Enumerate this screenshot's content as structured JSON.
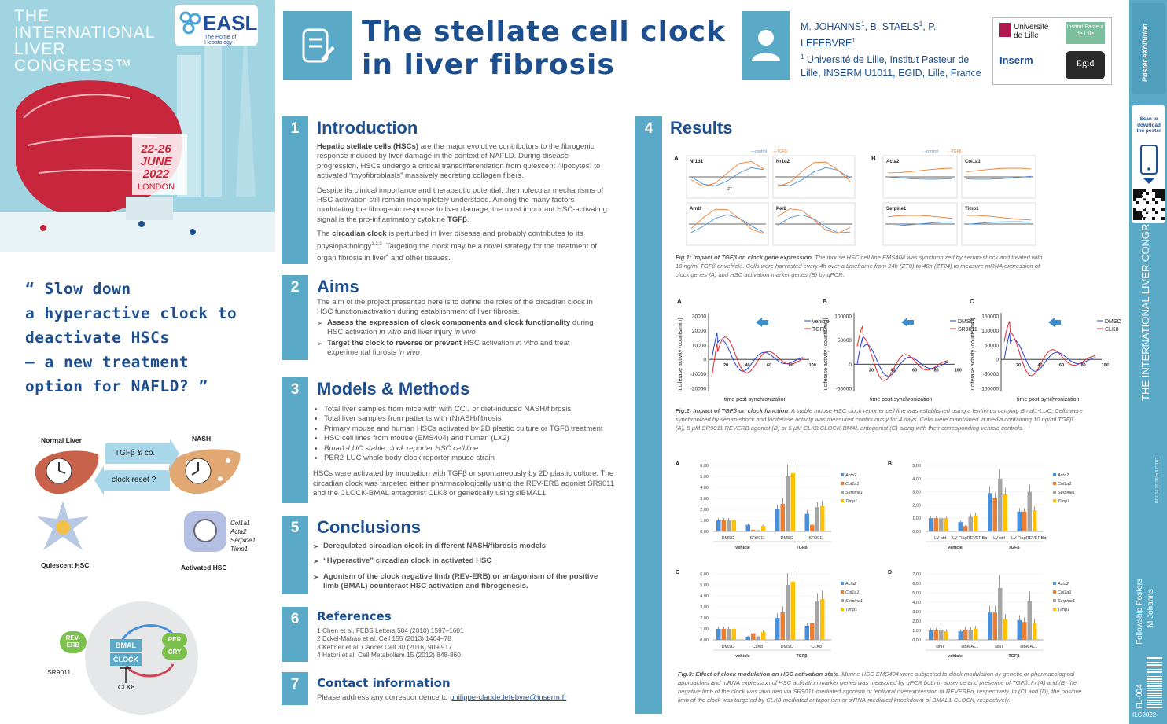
{
  "left": {
    "congress_lines": [
      "THE",
      "INTERNATIONAL",
      "LIVER",
      "CONGRESS™"
    ],
    "easl_logo": "EASL",
    "easl_tagline": "The Home of Hepatology",
    "date_lines": [
      "22-26",
      "JUNE",
      "2022"
    ],
    "location": "LONDON",
    "quote_lines": [
      "“ Slow down",
      "a hyperactive clock to",
      "deactivate HSCs",
      "– a new treatment",
      "option for NAFLD? ”"
    ],
    "diagram": {
      "normal_liver": "Normal Liver",
      "nash": "NASH",
      "tgfb_arrow": "TGFβ & co.",
      "reset_arrow": "clock reset ?",
      "quiescent": "Quiescent HSC",
      "activated": "Activated HSC",
      "markers": [
        "Col1a1",
        "Acta2",
        "Serpine1",
        "Timp1"
      ]
    },
    "clock_diagram": {
      "reverb": "REV-ERB",
      "bmal": "BMAL",
      "clock": "CLOCK",
      "per": "PER",
      "cry": "CRY",
      "sr9011": "SR9011",
      "clk8": "CLK8"
    }
  },
  "header": {
    "title_line1": "The stellate cell clock",
    "title_line2": "in liver fibrosis",
    "authors_link": "M. JOHANNS",
    "authors_rest": ", B. STAELS",
    "authors_rest2": ", P. LEFEBVRE",
    "sup": "1",
    "affiliation": " Université de Lille, Institut Pasteur de Lille, INSERM U1011, EGID, Lille, France",
    "logos": [
      "Université de Lille",
      "Institut Pasteur de Lille",
      "Inserm",
      "Egid"
    ]
  },
  "sections": {
    "intro": {
      "num": "1",
      "title": "Introduction",
      "p1_bold": "Hepatic stellate cells (HSCs)",
      "p1": " are the major evolutive contributors  to  the fibrogenic  response  induced by  liver  damage in the context of NAFLD. During disease progression, HSCs undergo a critical transdifferentiation from quiescent “lipocytes” to activated “myofibroblasts” massively secreting collagen fibers.",
      "p2": "Despite  its clinical  importance  and therapeutic  potential,  the  molecular mechanisms  of  HSC activation still  remain  incompletely  understood. Among the many factors modulating the fibrogenic response to liver damage, the most important  HSC-activating  signal is the pro-inflammatory cytokine ",
      "p2_bold": "TGFβ",
      "p3a": "The ",
      "p3_bold": "circadian clock",
      "p3b": " is perturbed in liver disease and probably contributes to its physiopathology",
      "p3_sup": "1,2,3",
      "p3c": ". Targeting the clock may be a novel strategy for the treatment of organ fibrosis in liver",
      "p3_sup2": "4",
      "p3d": " and other tissues."
    },
    "aims": {
      "num": "2",
      "title": "Aims",
      "p1": "The  aim  of  the  project  presented  here  is  to  define  the  roles  of  the circadian clock in HSC function/activation during establishment of liver fibrosis.",
      "b1_bold": "Assess the expression of clock components and clock functionality",
      "b1": " during HSC activation ",
      "b1_it": "in vitro",
      "b1b": " and liver injury ",
      "b1_it2": "in vivo",
      "b2_bold": "Target the clock to reverse or prevent",
      "b2": " HSC activation ",
      "b2_it": "in vitro",
      "b2b": " and treat experimental fibrosis ",
      "b2_it2": "in vivo"
    },
    "methods": {
      "num": "3",
      "title": "Models & Methods",
      "items": [
        "Total liver samples from mice with with CCl₄ or diet-induced NASH/fibrosis",
        "Total liver samples from patients with (N)ASH/fibrosis",
        "Primary mouse and human HSCs activated by 2D plastic culture or TGFβ treatment",
        "HSC cell lines from mouse (EMS404) and human (LX2)",
        "Bmal1-LUC stable clock reporter HSC cell line",
        "PER2-LUC whole body clock reporter mouse strain"
      ],
      "p": "HSCs were activated by incubation with TGFβ or spontaneously by 2D plastic culture. The circadian clock was targeted either pharmacologically using the REV-ERB agonist SR9011 and the CLOCK-BMAL antagonist CLK8 or genetically using siBMAL1."
    },
    "conclusions": {
      "num": "5",
      "title": "Conclusions",
      "items": [
        "Deregulated circadian clock in different NASH/fibrosis models",
        "“Hyperactive” circadian clock in activated HSC",
        "Agonism of the clock negative limb (REV-ERB) or antagonism of the positive limb (BMAL) counteract HSC activation and fibrogenesis."
      ]
    },
    "references": {
      "num": "6",
      "title": "References",
      "items": [
        "1 Chen et al, FEBS Letters 584 (2010) 1597–1601",
        "2 Eckel-Mahan et al, Cell 155 (2013) 1464–78",
        "3 Kettner et al, Cancer Cell 30 (2016) 909-917",
        "4 Hatori et al, Cell Metabolism 15 (2012) 848-860"
      ]
    },
    "contact": {
      "num": "7",
      "title": "Contact information",
      "text": "Please address any correspondence to ",
      "email": "philippe-claude.lefebvre@inserm.fr"
    },
    "results": {
      "num": "4",
      "title": "Results",
      "fig1_caption_bold": "Fig.1: Impact of TGFβ on clock gene expression",
      "fig1_caption": ". The mouse HSC cell line EMS404 was synchronized by serum-shock and treated with 10 ng/ml TGFβ or vehicle. Cells were harvested every 4h over a timeframe from 24h (ZT0) to 48h (ZT24) to measure mRNA expression of clock genes (A) and HSC activation marker genes (B) by qPCR.",
      "fig2_caption_bold": "Fig.2: Impact of TGFβ on clock function",
      "fig2_caption": ". A stable mouse HSC clock reporter cell line was established using a lentivirus carrying Bmal1-LUC. Cells were synchronized by serum-shock and luciferase activity was measured continuously for 4 days. Cells were maintained in media containing 10 ng/ml TGFβ (A), 5 µM SR9011 REVERB agonist (B) or 5 µM CLK8 CLOCK-BMAL antagonist (C) along with their corresponding vehicle controls.",
      "fig3_caption_bold": "Fig.3: Effect of clock modulation on HSC activation state",
      "fig3_caption": ". Murine HSC EMS404 were subjected to clock modulation by genetic or pharmacological approaches and mRNA expression of HSC activation marker genes was measured by qPCR both in absence and presence of TGFβ. In (A) and (B) the negative limb of the clock was favoured via SR9011-mediated agonism or lentiviral overexpression of REVERBα, respectively. In (C) and (D), the positive limb of the clock was targeted by CLK8-mediated antagonism or siRNA-mediated knockdown of BMAL1-CLOCK, respectively."
    }
  },
  "chart_data": [
    {
      "type": "line",
      "id": "fig1A",
      "panels": [
        "Nr1d1",
        "Nr1d2",
        "Arntl",
        "Per2"
      ],
      "legend": [
        "control",
        "TGFβ"
      ],
      "annotation": "ZT"
    },
    {
      "type": "line",
      "id": "fig1B",
      "panels": [
        "Acta2",
        "Col1a1",
        "Serpine1",
        "Timp1"
      ],
      "legend": [
        "control",
        "TGFβ"
      ]
    },
    {
      "type": "line",
      "id": "fig2A",
      "panel_label": "A",
      "series": [
        {
          "name": "vehicle",
          "color": "#2a3fd0"
        },
        {
          "name": "TGFβ",
          "color": "#e0282d"
        }
      ],
      "xlabel": "time post-synchronization",
      "ylabel": "luciferase activity (counts/min)",
      "xticks": [
        "20",
        "40",
        "60",
        "80",
        "100"
      ],
      "yticks": [
        "30000",
        "20000",
        "10000",
        "0",
        "-10000",
        "-20000"
      ]
    },
    {
      "type": "line",
      "id": "fig2B",
      "panel_label": "B",
      "series": [
        {
          "name": "DMSO",
          "color": "#2a3fd0"
        },
        {
          "name": "SR9011",
          "color": "#e0282d"
        }
      ],
      "xlabel": "time post-synchronization",
      "ylabel": "luciferase activity (counts/min)",
      "xticks": [
        "20",
        "40",
        "60",
        "80",
        "100"
      ],
      "yticks": [
        "100000",
        "50000",
        "0",
        "-50000"
      ]
    },
    {
      "type": "line",
      "id": "fig2C",
      "panel_label": "C",
      "series": [
        {
          "name": "DMSO",
          "color": "#2a3fd0"
        },
        {
          "name": "CLK8",
          "color": "#e0282d"
        }
      ],
      "xlabel": "time post-synchronization",
      "ylabel": "luciferase activity (counts/min)",
      "xticks": [
        "20",
        "40",
        "60",
        "80",
        "100"
      ],
      "yticks": [
        "150000",
        "100000",
        "50000",
        "0",
        "-50000",
        "-100000"
      ]
    },
    {
      "type": "bar",
      "id": "fig3A",
      "panel_label": "A",
      "categories": [
        "DMSO",
        "SR9011",
        "DMSO",
        "SR9011"
      ],
      "groups": [
        "vehicle",
        "TGFβ"
      ],
      "series": [
        {
          "name": "Acta2",
          "color": "#4a90d9",
          "values": [
            1.0,
            0.6,
            2.0,
            1.6
          ]
        },
        {
          "name": "Col1a1",
          "color": "#ed7d31",
          "values": [
            1.0,
            0.15,
            2.5,
            0.6
          ]
        },
        {
          "name": "Serpine1",
          "color": "#a5a5a5",
          "values": [
            1.0,
            0.1,
            5.0,
            2.2
          ]
        },
        {
          "name": "Timp1",
          "color": "#ffc000",
          "values": [
            1.0,
            0.5,
            5.3,
            2.3
          ]
        }
      ],
      "yticks": [
        "0,00",
        "1,00",
        "2,00",
        "3,00",
        "4,00",
        "5,00",
        "6,00"
      ],
      "ylim": [
        0,
        6
      ]
    },
    {
      "type": "bar",
      "id": "fig3B",
      "panel_label": "B",
      "categories": [
        "LV-ctrl",
        "LV-FlagREVERBα",
        "LV-ctrl",
        "LV-FlagREVERBα"
      ],
      "groups": [
        "vehicle",
        "TGFβ"
      ],
      "series": [
        {
          "name": "Acta2",
          "color": "#4a90d9",
          "values": [
            1.0,
            0.7,
            2.9,
            1.5
          ]
        },
        {
          "name": "Col1a1",
          "color": "#ed7d31",
          "values": [
            1.0,
            0.4,
            2.5,
            1.5
          ]
        },
        {
          "name": "Serpine1",
          "color": "#a5a5a5",
          "values": [
            1.0,
            1.1,
            4.0,
            3.0
          ]
        },
        {
          "name": "Timp1",
          "color": "#ffc000",
          "values": [
            1.0,
            1.2,
            2.8,
            1.6
          ]
        }
      ],
      "yticks": [
        "0,00",
        "1,00",
        "2,00",
        "3,00",
        "4,00",
        "5,00"
      ],
      "ylim": [
        0,
        5
      ]
    },
    {
      "type": "bar",
      "id": "fig3C",
      "panel_label": "C",
      "categories": [
        "DMSO",
        "CLK8",
        "DMSO",
        "CLK8"
      ],
      "groups": [
        "vehicle",
        "TGFβ"
      ],
      "series": [
        {
          "name": "Acta2",
          "color": "#4a90d9",
          "values": [
            1.0,
            0.3,
            2.0,
            1.3
          ]
        },
        {
          "name": "Col1a1",
          "color": "#ed7d31",
          "values": [
            1.0,
            0.6,
            2.5,
            1.5
          ]
        },
        {
          "name": "Serpine1",
          "color": "#a5a5a5",
          "values": [
            1.0,
            0.3,
            5.0,
            3.5
          ]
        },
        {
          "name": "Timp1",
          "color": "#ffc000",
          "values": [
            1.0,
            0.7,
            5.3,
            3.7
          ]
        }
      ],
      "yticks": [
        "0,00",
        "1,00",
        "2,00",
        "3,00",
        "4,00",
        "5,00",
        "6,00"
      ],
      "ylim": [
        0,
        6
      ]
    },
    {
      "type": "bar",
      "id": "fig3D",
      "panel_label": "D",
      "categories": [
        "siNT",
        "siBMAL1",
        "siNT",
        "siBMAL1"
      ],
      "groups": [
        "vehicle",
        "TGFβ"
      ],
      "series": [
        {
          "name": "Acta2",
          "color": "#4a90d9",
          "values": [
            1.0,
            0.9,
            2.9,
            2.1
          ]
        },
        {
          "name": "Col1a1",
          "color": "#ed7d31",
          "values": [
            1.0,
            1.1,
            2.9,
            1.9
          ]
        },
        {
          "name": "Serpine1",
          "color": "#a5a5a5",
          "values": [
            1.0,
            1.1,
            5.5,
            4.1
          ]
        },
        {
          "name": "Timp1",
          "color": "#ffc000",
          "values": [
            0.9,
            1.2,
            2.2,
            1.8
          ]
        }
      ],
      "yticks": [
        "0,00",
        "1,00",
        "2,00",
        "3,00",
        "4,00",
        "5,00",
        "6,00",
        "7,00"
      ],
      "ylim": [
        0,
        7
      ]
    }
  ],
  "strip": {
    "top_logo": "Poster eXhibition",
    "scan": "Scan to download the poster",
    "congress": "THE INTERNATIONAL LIVER CONGRESS™",
    "doi": "DOI: 10.26226/m.ILC2022",
    "fellowship": "Fellowship Posters",
    "author": "M Johanns",
    "code": "FL-004",
    "ilc": "ILC2022"
  }
}
